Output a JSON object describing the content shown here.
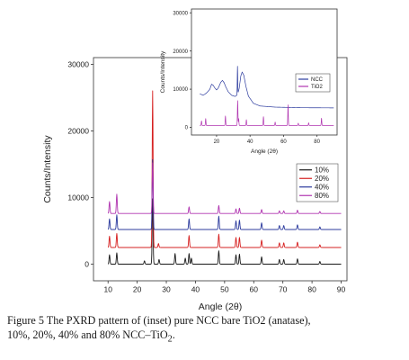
{
  "chart_data": [
    {
      "panel": "main",
      "type": "line",
      "xlabel": "Angle (2θ)",
      "ylabel": "Counts/Intensity",
      "xlim": [
        5,
        92
      ],
      "ylim": [
        -2500,
        31000
      ],
      "xticks": [
        "10",
        "20",
        "30",
        "40",
        "50",
        "60",
        "70",
        "80",
        "90"
      ],
      "yticks": [
        "0",
        "10000",
        "20000",
        "30000"
      ],
      "grid": false,
      "legend_position": "right-middle",
      "series": [
        {
          "name": "10%",
          "color": "#1a1a1a",
          "baseline": 0,
          "peaks": [
            [
              10.5,
              1400
            ],
            [
              13.0,
              1700
            ],
            [
              22.5,
              500
            ],
            [
              25.3,
              9800
            ],
            [
              27.5,
              700
            ],
            [
              33.0,
              1600
            ],
            [
              36.5,
              900
            ],
            [
              37.8,
              1600
            ],
            [
              38.6,
              900
            ],
            [
              48.0,
              2000
            ],
            [
              53.9,
              1400
            ],
            [
              55.1,
              1500
            ],
            [
              62.7,
              1100
            ],
            [
              68.8,
              700
            ],
            [
              70.3,
              700
            ],
            [
              75.0,
              800
            ],
            [
              82.7,
              400
            ]
          ]
        },
        {
          "name": "20%",
          "color": "#d62020",
          "baseline": 2500,
          "peaks": [
            [
              10.5,
              1700
            ],
            [
              13.0,
              2100
            ],
            [
              25.3,
              23500
            ],
            [
              27.3,
              600
            ],
            [
              37.8,
              1800
            ],
            [
              48.0,
              2000
            ],
            [
              53.9,
              1500
            ],
            [
              55.1,
              1500
            ],
            [
              62.7,
              1100
            ],
            [
              68.8,
              700
            ],
            [
              70.3,
              700
            ],
            [
              75.0,
              800
            ],
            [
              82.7,
              400
            ]
          ]
        },
        {
          "name": "40%",
          "color": "#2c3b9e",
          "baseline": 5200,
          "peaks": [
            [
              10.5,
              1600
            ],
            [
              13.0,
              2200
            ],
            [
              25.3,
              10500
            ],
            [
              37.8,
              1600
            ],
            [
              48.0,
              2000
            ],
            [
              53.9,
              1300
            ],
            [
              55.1,
              1400
            ],
            [
              62.7,
              1000
            ],
            [
              68.8,
              600
            ],
            [
              70.3,
              600
            ],
            [
              75.0,
              700
            ],
            [
              82.7,
              400
            ]
          ]
        },
        {
          "name": "80%",
          "color": "#b035b0",
          "baseline": 7600,
          "peaks": [
            [
              10.5,
              1800
            ],
            [
              13.0,
              2900
            ],
            [
              25.3,
              7600
            ],
            [
              37.8,
              1000
            ],
            [
              48.0,
              1200
            ],
            [
              53.9,
              700
            ],
            [
              55.1,
              800
            ],
            [
              62.7,
              600
            ],
            [
              68.8,
              400
            ],
            [
              70.3,
              400
            ],
            [
              75.0,
              500
            ],
            [
              82.7,
              300
            ]
          ]
        }
      ]
    },
    {
      "panel": "inset",
      "type": "line",
      "xlabel": "Angle (2θ)",
      "ylabel": "Counts/Intensity",
      "xlim": [
        5,
        92
      ],
      "ylim": [
        -2000,
        31000
      ],
      "xticks": [
        "20",
        "40",
        "60",
        "80"
      ],
      "yticks": [
        "0",
        "10000",
        "20000",
        "30000"
      ],
      "grid": false,
      "legend_position": "right-middle",
      "series": [
        {
          "name": "NCC",
          "color": "#2c3b9e",
          "baseline": 5000,
          "points": [
            [
              10,
              8800
            ],
            [
              12,
              8400
            ],
            [
              14,
              9000
            ],
            [
              16,
              10000
            ],
            [
              17,
              11300
            ],
            [
              18,
              11000
            ],
            [
              19,
              10300
            ],
            [
              20,
              9800
            ],
            [
              21,
              10300
            ],
            [
              22.5,
              11800
            ],
            [
              23.5,
              12300
            ],
            [
              24.5,
              11700
            ],
            [
              25.5,
              10600
            ],
            [
              27,
              9300
            ],
            [
              29,
              8400
            ],
            [
              31,
              8100
            ],
            [
              32.5,
              8500
            ],
            [
              33.5,
              10200
            ],
            [
              34.5,
              13500
            ],
            [
              35.3,
              14500
            ],
            [
              36.3,
              13600
            ],
            [
              37.5,
              10800
            ],
            [
              39,
              8200
            ],
            [
              42,
              6300
            ],
            [
              46,
              5600
            ],
            [
              55,
              5300
            ],
            [
              70,
              5150
            ],
            [
              92,
              5100
            ]
          ],
          "spike": [
            32.5,
            16000
          ]
        },
        {
          "name": "TiO2",
          "color": "#b035b0",
          "baseline": 500,
          "peaks": [
            [
              11.0,
              1200
            ],
            [
              13.5,
              1800
            ],
            [
              25.3,
              2500
            ],
            [
              32.6,
              6500
            ],
            [
              33.2,
              1800
            ],
            [
              37.8,
              1500
            ],
            [
              48.0,
              2300
            ],
            [
              55.0,
              900
            ],
            [
              62.7,
              5400
            ],
            [
              68.8,
              600
            ],
            [
              75.0,
              700
            ],
            [
              82.7,
              1900
            ]
          ]
        }
      ]
    }
  ],
  "caption": {
    "line1": "Figure 5 The PXRD pattern of (inset) pure NCC bare TiO2 (anatase),",
    "line2_prefix": "10%, 20%, 40% and 80% NCC–TiO",
    "line2_sub": "2",
    "line2_suffix": "."
  }
}
